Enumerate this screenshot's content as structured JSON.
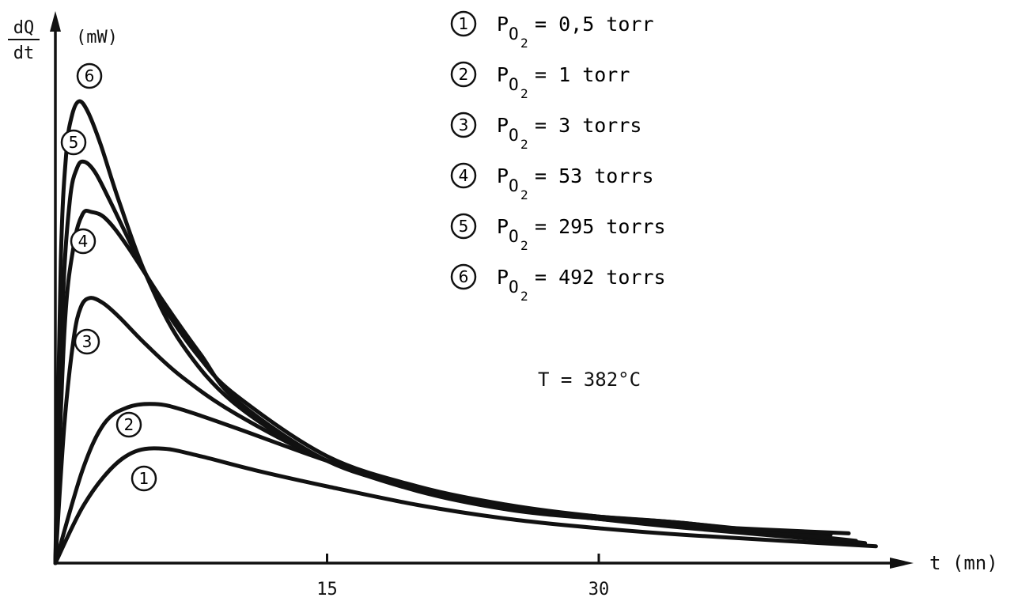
{
  "chart_data": {
    "type": "line",
    "title": "",
    "xlabel": "t (mn)",
    "ylabel_num": "dQ",
    "ylabel_den": "dt",
    "yunit": "(mW)",
    "xlim": [
      0,
      45
    ],
    "ylim": [
      0,
      100
    ],
    "xticks": [
      15,
      30
    ],
    "grid": false,
    "legend_position": "top-right",
    "annotation": "T = 382°C",
    "legend": [
      {
        "marker": "1",
        "var": "P",
        "sub": "O",
        "subsub": "2",
        "text": "= 0,5 torr"
      },
      {
        "marker": "2",
        "var": "P",
        "sub": "O",
        "subsub": "2",
        "text": "= 1 torr"
      },
      {
        "marker": "3",
        "var": "P",
        "sub": "O",
        "subsub": "2",
        "text": "= 3 torrs"
      },
      {
        "marker": "4",
        "var": "P",
        "sub": "O",
        "subsub": "2",
        "text": "= 53 torrs"
      },
      {
        "marker": "5",
        "var": "P",
        "sub": "O",
        "subsub": "2",
        "text": "= 295 torrs"
      },
      {
        "marker": "6",
        "var": "P",
        "sub": "O",
        "subsub": "2",
        "text": "= 492 torrs"
      }
    ],
    "series": [
      {
        "marker": "1",
        "x": [
          0,
          1.5,
          3,
          4.4,
          6,
          8,
          11,
          15,
          20,
          25,
          30,
          35,
          45.3
        ],
        "y": [
          0,
          12,
          20,
          24,
          24.6,
          23,
          20,
          16.5,
          12.5,
          9.5,
          7.5,
          6,
          3.6
        ]
      },
      {
        "marker": "2",
        "x": [
          0,
          1.5,
          2.7,
          4,
          5.5,
          7,
          10,
          15,
          20,
          25,
          30,
          35,
          44.5
        ],
        "y": [
          0,
          20,
          30,
          33.5,
          34.2,
          33,
          29,
          22,
          16,
          12,
          9.5,
          7.5,
          4.3
        ]
      },
      {
        "marker": "3",
        "x": [
          0,
          0.5,
          1,
          1.4,
          1.9,
          2.6,
          3.5,
          5,
          7,
          10,
          15,
          20,
          25,
          30,
          35,
          42.8
        ],
        "y": [
          0,
          30,
          48,
          55,
          57,
          56,
          53,
          47,
          40,
          32,
          22,
          15.5,
          11.5,
          9.5,
          8,
          6.1
        ]
      },
      {
        "marker": "4",
        "x": [
          0,
          0.5,
          1,
          1.5,
          2,
          2.8,
          4,
          6,
          8,
          10,
          15,
          20,
          25,
          30,
          35,
          44.7
        ],
        "y": [
          0,
          50,
          68,
          75,
          75.5,
          74,
          68,
          56,
          45,
          35,
          22,
          16,
          12,
          10,
          8.5,
          4.3
        ]
      },
      {
        "marker": "5",
        "x": [
          0,
          0.4,
          0.8,
          1.2,
          1.6,
          2.2,
          3,
          4.5,
          6,
          8,
          10,
          15,
          20,
          25,
          30,
          35,
          44.2
        ],
        "y": [
          0,
          55,
          78,
          85,
          86.3,
          84,
          78,
          66,
          55,
          44,
          36,
          23,
          16.5,
          12.5,
          10,
          8.5,
          4.8
        ]
      },
      {
        "marker": "6",
        "x": [
          0,
          0.3,
          0.6,
          0.9,
          1.3,
          1.8,
          2.5,
          3.5,
          5,
          7,
          10,
          15,
          20,
          25,
          30,
          35,
          43.8
        ],
        "y": [
          0,
          65,
          88,
          96,
          99.3,
          97,
          90,
          78,
          62,
          47,
          34,
          22,
          16,
          12,
          9.5,
          8,
          6.4
        ]
      }
    ]
  }
}
